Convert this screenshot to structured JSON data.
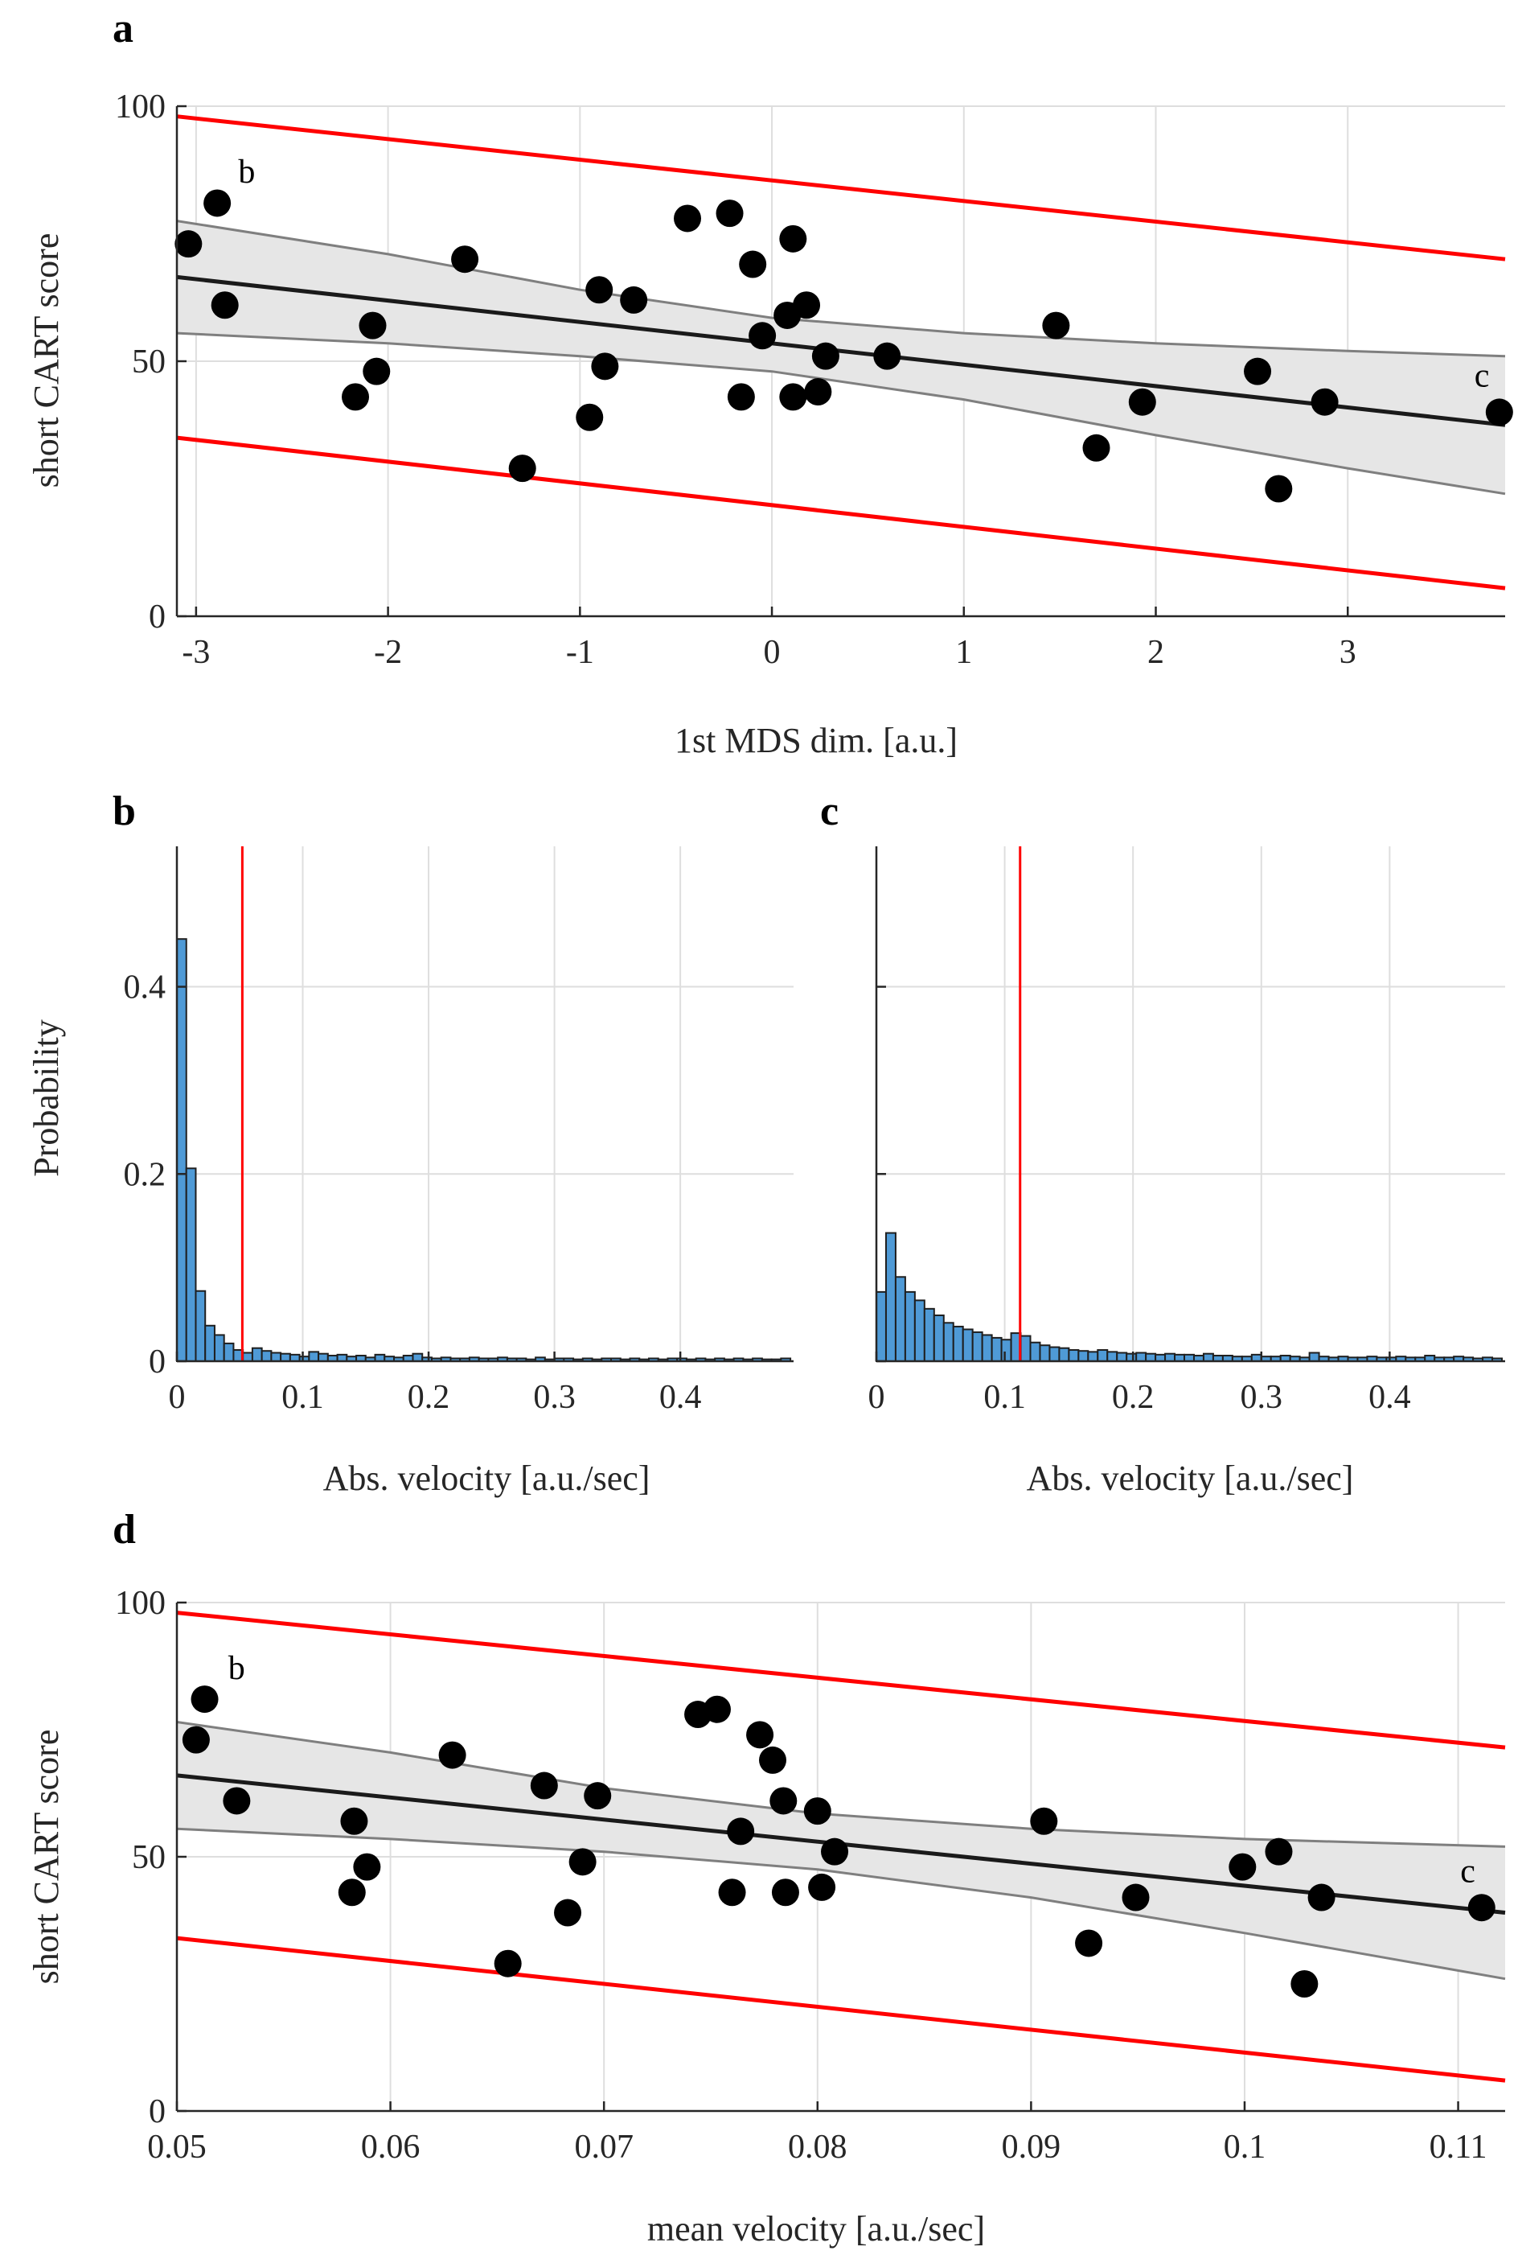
{
  "chart_data": [
    {
      "id": "a",
      "type": "scatter",
      "panel_label": "a",
      "xlabel": "1st MDS dim. [a.u.]",
      "ylabel": "short CART score",
      "xlim": [
        -3.1,
        3.82
      ],
      "ylim": [
        0,
        100
      ],
      "xticks": [
        -3,
        -2,
        -1,
        0,
        1,
        2,
        3
      ],
      "yticks": [
        0,
        50,
        100
      ],
      "xtick_labels": [
        "-3",
        "-2",
        "-1",
        "0",
        "1",
        "2",
        "3"
      ],
      "ytick_labels": [
        "0",
        "50",
        "100"
      ],
      "grid": true,
      "points": [
        {
          "x": -3.04,
          "y": 73
        },
        {
          "x": -2.89,
          "y": 81
        },
        {
          "x": -2.85,
          "y": 61
        },
        {
          "x": -2.17,
          "y": 43
        },
        {
          "x": -2.08,
          "y": 57
        },
        {
          "x": -2.06,
          "y": 48
        },
        {
          "x": -1.6,
          "y": 70
        },
        {
          "x": -1.3,
          "y": 29
        },
        {
          "x": -0.95,
          "y": 39
        },
        {
          "x": -0.9,
          "y": 64
        },
        {
          "x": -0.87,
          "y": 49
        },
        {
          "x": -0.72,
          "y": 62
        },
        {
          "x": -0.44,
          "y": 78
        },
        {
          "x": -0.22,
          "y": 79
        },
        {
          "x": -0.16,
          "y": 43
        },
        {
          "x": -0.1,
          "y": 69
        },
        {
          "x": -0.05,
          "y": 55
        },
        {
          "x": 0.08,
          "y": 59
        },
        {
          "x": 0.11,
          "y": 74
        },
        {
          "x": 0.11,
          "y": 43
        },
        {
          "x": 0.18,
          "y": 61
        },
        {
          "x": 0.24,
          "y": 44
        },
        {
          "x": 0.28,
          "y": 51
        },
        {
          "x": 0.6,
          "y": 51
        },
        {
          "x": 1.48,
          "y": 57
        },
        {
          "x": 1.69,
          "y": 33
        },
        {
          "x": 1.93,
          "y": 42
        },
        {
          "x": 2.53,
          "y": 48
        },
        {
          "x": 2.64,
          "y": 25
        },
        {
          "x": 2.88,
          "y": 42
        },
        {
          "x": 3.79,
          "y": 40
        }
      ],
      "fit_line": [
        [
          -3.1,
          66.5
        ],
        [
          3.82,
          37.5
        ]
      ],
      "ci_upper": [
        [
          -3.1,
          77.5
        ],
        [
          -2,
          71
        ],
        [
          -1,
          64
        ],
        [
          0,
          58.5
        ],
        [
          1,
          55.5
        ],
        [
          2,
          53.5
        ],
        [
          3,
          52
        ],
        [
          3.82,
          51
        ]
      ],
      "ci_lower": [
        [
          -3.1,
          55.5
        ],
        [
          -2,
          53.5
        ],
        [
          -1,
          51
        ],
        [
          0,
          48
        ],
        [
          1,
          42.5
        ],
        [
          2,
          35.5
        ],
        [
          3,
          29
        ],
        [
          3.82,
          24
        ]
      ],
      "pred_upper": [
        [
          -3.1,
          98
        ],
        [
          3.82,
          70
        ]
      ],
      "pred_lower": [
        [
          -3.1,
          35
        ],
        [
          3.82,
          5.5
        ]
      ],
      "annotations": [
        {
          "text": "b",
          "x": -2.78,
          "y": 85
        },
        {
          "text": "c",
          "x": 3.66,
          "y": 45
        }
      ]
    },
    {
      "id": "b",
      "type": "bar",
      "panel_label": "b",
      "xlabel": "Abs. velocity [a.u./sec]",
      "ylabel": "Probability",
      "xlim": [
        0,
        0.49
      ],
      "ylim": [
        0,
        0.55
      ],
      "xticks": [
        0,
        0.1,
        0.2,
        0.3,
        0.4
      ],
      "yticks": [
        0,
        0.2,
        0.4
      ],
      "xtick_labels": [
        "0",
        "0.1",
        "0.2",
        "0.3",
        "0.4"
      ],
      "ytick_labels": [
        "0",
        "0.2",
        "0.4"
      ],
      "grid": true,
      "bin_start": 0,
      "bin_width": 0.0075,
      "values": [
        0.451,
        0.206,
        0.075,
        0.038,
        0.028,
        0.019,
        0.012,
        0.009,
        0.014,
        0.011,
        0.009,
        0.008,
        0.007,
        0.005,
        0.01,
        0.008,
        0.006,
        0.007,
        0.005,
        0.006,
        0.004,
        0.007,
        0.005,
        0.004,
        0.006,
        0.008,
        0.004,
        0.003,
        0.004,
        0.003,
        0.003,
        0.004,
        0.003,
        0.003,
        0.004,
        0.003,
        0.003,
        0.002,
        0.004,
        0.002,
        0.003,
        0.003,
        0.002,
        0.003,
        0.002,
        0.003,
        0.003,
        0.002,
        0.003,
        0.002,
        0.003,
        0.002,
        0.003,
        0.003,
        0.002,
        0.003,
        0.002,
        0.003,
        0.002,
        0.003,
        0.002,
        0.003,
        0.002,
        0.002,
        0.003
      ],
      "mean_line": 0.052
    },
    {
      "id": "c",
      "type": "bar",
      "panel_label": "c",
      "xlabel": "Abs. velocity [a.u./sec]",
      "ylabel": "",
      "xlim": [
        0,
        0.49
      ],
      "ylim": [
        0,
        0.55
      ],
      "xticks": [
        0,
        0.1,
        0.2,
        0.3,
        0.4
      ],
      "xtick_labels": [
        "0",
        "0.1",
        "0.2",
        "0.3",
        "0.4"
      ],
      "yticks": [
        0,
        0.2,
        0.4
      ],
      "ytick_labels": [],
      "grid": true,
      "bin_start": 0,
      "bin_width": 0.0075,
      "values": [
        0.074,
        0.137,
        0.09,
        0.074,
        0.065,
        0.056,
        0.049,
        0.041,
        0.037,
        0.034,
        0.031,
        0.028,
        0.025,
        0.023,
        0.03,
        0.027,
        0.02,
        0.017,
        0.015,
        0.014,
        0.012,
        0.011,
        0.01,
        0.012,
        0.01,
        0.009,
        0.008,
        0.009,
        0.008,
        0.007,
        0.008,
        0.007,
        0.007,
        0.006,
        0.008,
        0.006,
        0.006,
        0.005,
        0.005,
        0.007,
        0.005,
        0.005,
        0.006,
        0.005,
        0.004,
        0.009,
        0.005,
        0.004,
        0.005,
        0.004,
        0.004,
        0.005,
        0.004,
        0.004,
        0.005,
        0.004,
        0.004,
        0.006,
        0.004,
        0.004,
        0.005,
        0.004,
        0.003,
        0.004,
        0.003
      ],
      "mean_line": 0.112
    },
    {
      "id": "d",
      "type": "scatter",
      "panel_label": "d",
      "xlabel": "mean velocity [a.u./sec]",
      "ylabel": "short CART score",
      "xlim": [
        0.05,
        0.1122
      ],
      "ylim": [
        0,
        100
      ],
      "xticks": [
        0.05,
        0.06,
        0.07,
        0.08,
        0.09,
        0.1,
        0.11
      ],
      "xtick_labels": [
        "0.05",
        "0.06",
        "0.07",
        "0.08",
        "0.09",
        "0.1",
        "0.11"
      ],
      "yticks": [
        0,
        50,
        100
      ],
      "ytick_labels": [
        "0",
        "50",
        "100"
      ],
      "grid": true,
      "points": [
        {
          "x": 0.0509,
          "y": 73
        },
        {
          "x": 0.0513,
          "y": 81
        },
        {
          "x": 0.0528,
          "y": 61
        },
        {
          "x": 0.0582,
          "y": 43
        },
        {
          "x": 0.0583,
          "y": 57
        },
        {
          "x": 0.0589,
          "y": 48
        },
        {
          "x": 0.0629,
          "y": 70
        },
        {
          "x": 0.0655,
          "y": 29
        },
        {
          "x": 0.0672,
          "y": 64
        },
        {
          "x": 0.0683,
          "y": 39
        },
        {
          "x": 0.069,
          "y": 49
        },
        {
          "x": 0.0697,
          "y": 62
        },
        {
          "x": 0.0744,
          "y": 78
        },
        {
          "x": 0.0753,
          "y": 79
        },
        {
          "x": 0.076,
          "y": 43
        },
        {
          "x": 0.0764,
          "y": 55
        },
        {
          "x": 0.0773,
          "y": 74
        },
        {
          "x": 0.0779,
          "y": 69
        },
        {
          "x": 0.0784,
          "y": 61
        },
        {
          "x": 0.0785,
          "y": 43
        },
        {
          "x": 0.08,
          "y": 59
        },
        {
          "x": 0.0802,
          "y": 44
        },
        {
          "x": 0.0808,
          "y": 51
        },
        {
          "x": 0.0906,
          "y": 57
        },
        {
          "x": 0.0927,
          "y": 33
        },
        {
          "x": 0.0949,
          "y": 42
        },
        {
          "x": 0.0999,
          "y": 48
        },
        {
          "x": 0.1016,
          "y": 51
        },
        {
          "x": 0.1028,
          "y": 25
        },
        {
          "x": 0.1036,
          "y": 42
        },
        {
          "x": 0.1111,
          "y": 40
        }
      ],
      "fit_line": [
        [
          0.05,
          66
        ],
        [
          0.1122,
          39
        ]
      ],
      "ci_upper": [
        [
          0.05,
          76.5
        ],
        [
          0.06,
          70.5
        ],
        [
          0.07,
          63.5
        ],
        [
          0.08,
          58.5
        ],
        [
          0.09,
          55.5
        ],
        [
          0.1,
          53.5
        ],
        [
          0.1122,
          52
        ]
      ],
      "ci_lower": [
        [
          0.05,
          55.5
        ],
        [
          0.06,
          53.5
        ],
        [
          0.07,
          51
        ],
        [
          0.08,
          47.5
        ],
        [
          0.09,
          42
        ],
        [
          0.1,
          35
        ],
        [
          0.1122,
          26
        ]
      ],
      "pred_upper": [
        [
          0.05,
          98
        ],
        [
          0.1122,
          71.5
        ]
      ],
      "pred_lower": [
        [
          0.05,
          34
        ],
        [
          0.1122,
          6
        ]
      ],
      "annotations": [
        {
          "text": "b",
          "x": 0.0524,
          "y": 85
        },
        {
          "text": "c",
          "x": 0.1101,
          "y": 45
        }
      ]
    }
  ]
}
